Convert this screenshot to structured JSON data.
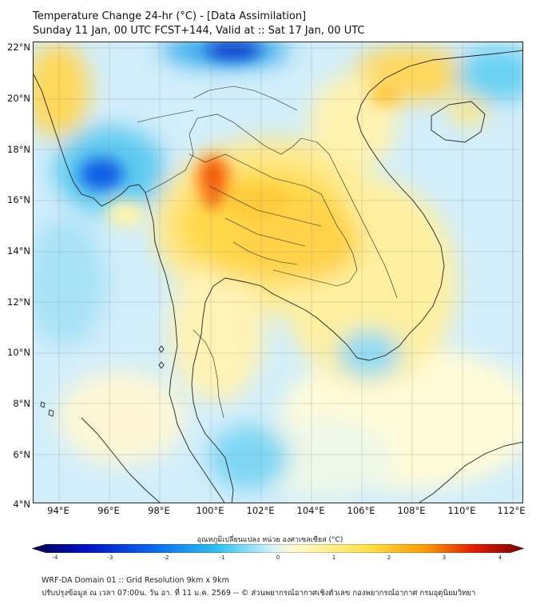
{
  "title": {
    "line1": "Temperature Change 24-hr (°C) - [Data Assimilation]",
    "line2": "Sunday 11 Jan, 00 UTC FCST+144, Valid at :: Sat 17 Jan, 00 UTC"
  },
  "map": {
    "lat_labels": [
      "22°N",
      "20°N",
      "18°N",
      "16°N",
      "14°N",
      "12°N",
      "10°N",
      "8°N",
      "6°N",
      "4°N"
    ],
    "lon_labels": [
      "94°E",
      "96°E",
      "98°E",
      "100°E",
      "102°E",
      "104°E",
      "106°E",
      "108°E",
      "110°E",
      "112°E"
    ],
    "background_color": "#cfeefc"
  },
  "colorbar": {
    "title": "อุณหภูมิเปลี่ยนแปลง หน่วย องศาเซลเซียส (°C)",
    "ticks": [
      "-4",
      "-3",
      "-2",
      "-1",
      "0",
      "1",
      "2",
      "3",
      "4"
    ],
    "colors": [
      "#05004d",
      "#0010c8",
      "#0a6cf0",
      "#2fc2f0",
      "#d8f3fb",
      "#fffbd0",
      "#ffe24a",
      "#ff9a00",
      "#e41a00",
      "#7a0000"
    ]
  },
  "footer": {
    "line1": "WRF-DA Domain 01 :: Grid Resolution 9km x 9km",
    "line2": "ปรับปรุงข้อมูล ณ เวลา 07:00น. วัน อา. ที่ 11 ม.ค. 2569 -- © ส่วนพยากรณ์อากาศเชิงตัวเลข กองพยากรณ์อากาศ กรมอุตุนิยมวิทยา"
  }
}
